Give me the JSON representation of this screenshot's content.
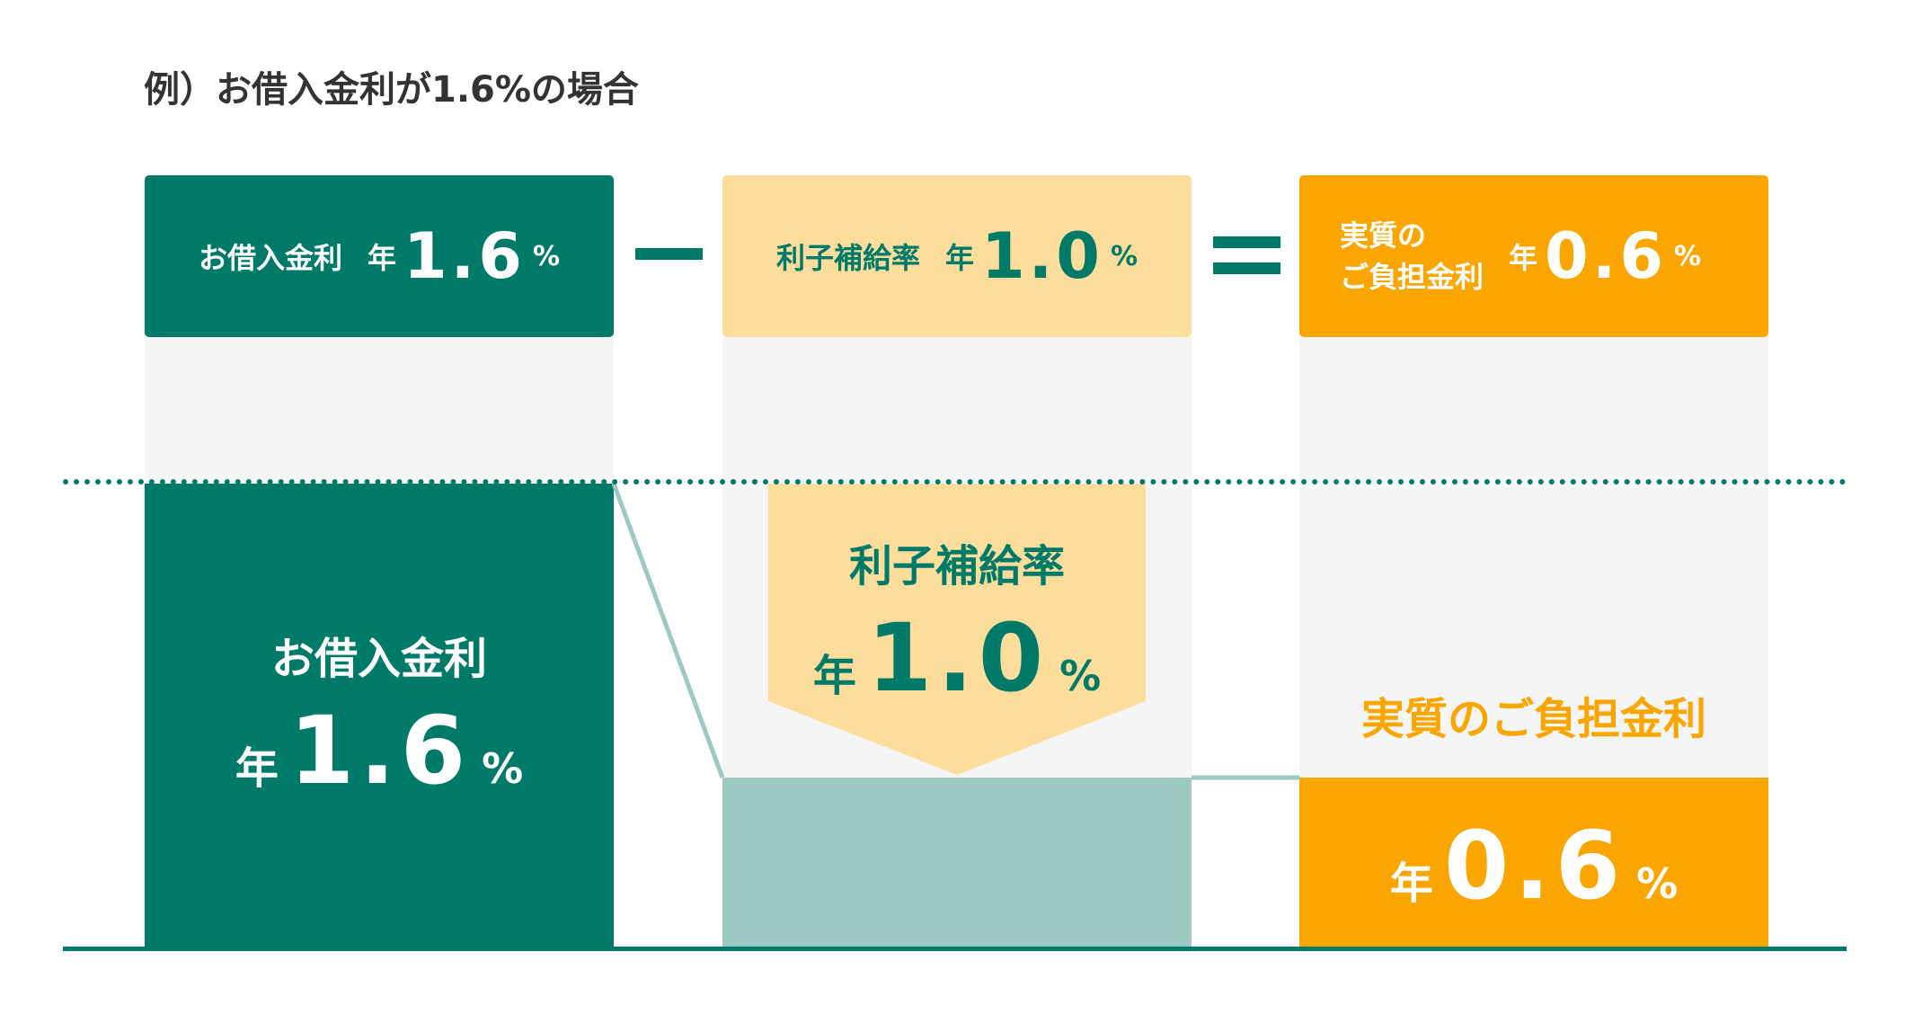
{
  "title": "例）お借入金利が1.6%の場合",
  "header": {
    "loan_rate": {
      "label": "お借入金利",
      "unit": "年",
      "value": "1.6",
      "pct": "%"
    },
    "subsidy_rate": {
      "label": "利子補給率",
      "unit": "年",
      "value": "1.0",
      "pct": "%"
    },
    "effective_rate": {
      "label_line1": "実質の",
      "label_line2": "ご負担金利",
      "unit": "年",
      "value": "0.6",
      "pct": "%"
    }
  },
  "chart": {
    "loan": {
      "label": "お借入金利",
      "unit": "年",
      "value": "1.6",
      "pct": "%"
    },
    "subsidy": {
      "label": "利子補給率",
      "unit": "年",
      "value": "1.0",
      "pct": "%"
    },
    "effective": {
      "label": "実質のご負担金利",
      "unit": "年",
      "value": "0.6",
      "pct": "%"
    }
  },
  "colors": {
    "green": "#007a68",
    "light_green": "#9ccac3",
    "orange": "#faa500",
    "light_orange": "#fddd9b",
    "gray_bg": "#f5f5f5"
  },
  "chart_data": {
    "type": "bar",
    "categories": [
      "お借入金利",
      "利子補給率",
      "実質のご負担金利"
    ],
    "values": [
      1.6,
      1.0,
      0.6
    ]
  }
}
